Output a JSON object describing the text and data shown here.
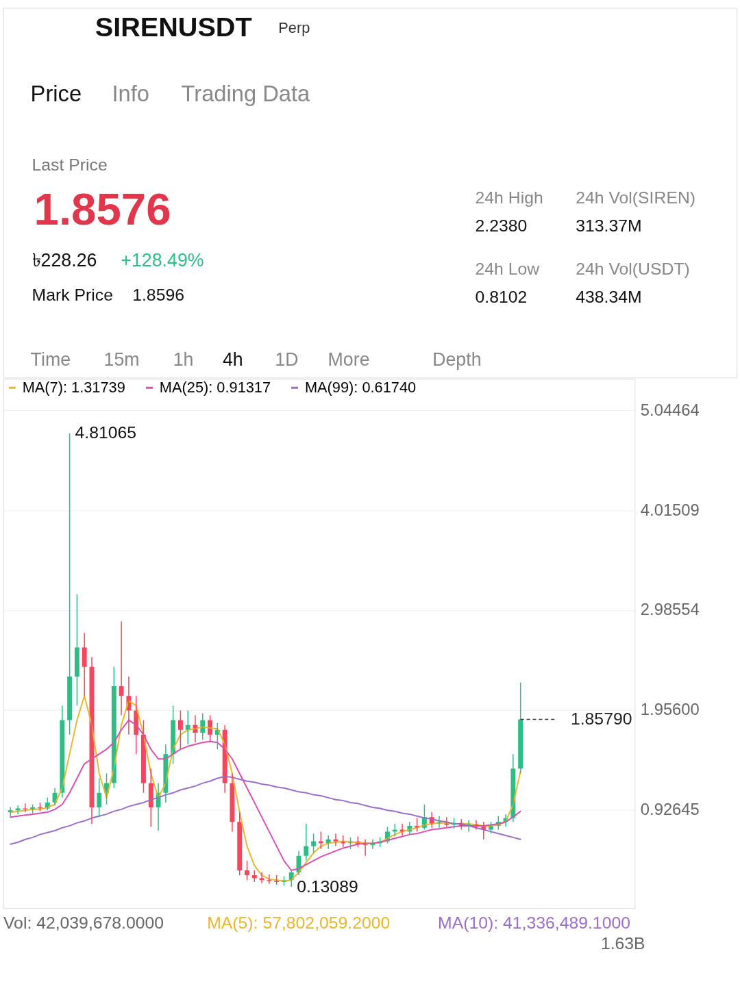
{
  "chart_data": [
    {
      "type": "other",
      "title": "SIRENUSDT",
      "annotations": [
        "Perp",
        "Price",
        "Info",
        "Trading Data",
        "Last Price",
        "1.8576",
        "৳228.26",
        "+128.49%",
        "Mark Price",
        "1.8596",
        "24h High",
        "2.2380",
        "24h Vol(SIREN)",
        "313.37M",
        "24h Low",
        "0.8102",
        "24h Vol(USDT)",
        "438.34M",
        "Time",
        "15m",
        "1h",
        "4h",
        "1D",
        "More",
        "Depth"
      ]
    },
    {
      "type": "candlestick",
      "categories": [
        null,
        null,
        null,
        null,
        null,
        null,
        null,
        null,
        null,
        null,
        null,
        null,
        null,
        null,
        null,
        null,
        null,
        null,
        null,
        null,
        null,
        null,
        null,
        null,
        null,
        null,
        null,
        null,
        null,
        null,
        null,
        null,
        null,
        null,
        null,
        null,
        null,
        null,
        null,
        null,
        null,
        null,
        null,
        null,
        null,
        null,
        null,
        null,
        null,
        null,
        null,
        null,
        null,
        null,
        null,
        null,
        null,
        null,
        null,
        null,
        null,
        null,
        null,
        null,
        null,
        null,
        null,
        null,
        null,
        null
      ],
      "ohlc": [
        [
          0.9,
          0.95,
          0.85,
          0.92
        ],
        [
          0.92,
          0.97,
          0.88,
          0.94
        ],
        [
          0.94,
          0.99,
          0.9,
          0.93
        ],
        [
          0.93,
          0.98,
          0.89,
          0.95
        ],
        [
          0.95,
          1.0,
          0.91,
          0.94
        ],
        [
          0.94,
          1.05,
          0.92,
          1.0
        ],
        [
          1.0,
          1.15,
          0.97,
          1.1
        ],
        [
          1.1,
          2.0,
          1.05,
          1.85
        ],
        [
          1.85,
          4.81065,
          1.7,
          2.3
        ],
        [
          2.3,
          3.15,
          2.0,
          2.6
        ],
        [
          2.6,
          2.75,
          2.1,
          2.4
        ],
        [
          2.4,
          2.5,
          0.78,
          0.95
        ],
        [
          0.95,
          1.25,
          0.85,
          1.1
        ],
        [
          1.1,
          1.3,
          0.98,
          1.2
        ],
        [
          1.2,
          2.4,
          1.15,
          2.2
        ],
        [
          2.2,
          2.87,
          1.9,
          2.1
        ],
        [
          2.1,
          2.3,
          1.7,
          1.95
        ],
        [
          1.95,
          2.1,
          1.5,
          1.7
        ],
        [
          1.7,
          1.85,
          1.1,
          1.2
        ],
        [
          1.2,
          1.35,
          0.75,
          0.95
        ],
        [
          0.95,
          1.2,
          0.71,
          1.1
        ],
        [
          1.1,
          1.6,
          1.0,
          1.5
        ],
        [
          1.5,
          2.0,
          1.4,
          1.85
        ],
        [
          1.85,
          1.95,
          1.55,
          1.75
        ],
        [
          1.75,
          1.95,
          1.6,
          1.8
        ],
        [
          1.8,
          1.9,
          1.62,
          1.72
        ],
        [
          1.72,
          1.92,
          1.65,
          1.85
        ],
        [
          1.85,
          1.9,
          1.62,
          1.7
        ],
        [
          1.7,
          1.82,
          1.55,
          1.75
        ],
        [
          1.75,
          1.8,
          1.1,
          1.2
        ],
        [
          1.2,
          1.3,
          0.7,
          0.8
        ],
        [
          0.8,
          0.9,
          0.25,
          0.3
        ],
        [
          0.3,
          0.4,
          0.2,
          0.25
        ],
        [
          0.25,
          0.3,
          0.18,
          0.22
        ],
        [
          0.22,
          0.28,
          0.17,
          0.2
        ],
        [
          0.2,
          0.26,
          0.16,
          0.19
        ],
        [
          0.19,
          0.25,
          0.15,
          0.18
        ],
        [
          0.18,
          0.24,
          0.14,
          0.2
        ],
        [
          0.2,
          0.3,
          0.13089,
          0.28
        ],
        [
          0.28,
          0.5,
          0.25,
          0.45
        ],
        [
          0.45,
          0.78,
          0.4,
          0.55
        ],
        [
          0.55,
          0.68,
          0.48,
          0.6
        ],
        [
          0.6,
          0.7,
          0.52,
          0.58
        ],
        [
          0.58,
          0.66,
          0.52,
          0.62
        ],
        [
          0.62,
          0.68,
          0.55,
          0.6
        ],
        [
          0.6,
          0.66,
          0.54,
          0.58
        ],
        [
          0.58,
          0.64,
          0.52,
          0.6
        ],
        [
          0.6,
          0.65,
          0.54,
          0.57
        ],
        [
          0.57,
          0.62,
          0.45,
          0.56
        ],
        [
          0.56,
          0.62,
          0.52,
          0.58
        ],
        [
          0.58,
          0.64,
          0.54,
          0.6
        ],
        [
          0.6,
          0.75,
          0.58,
          0.7
        ],
        [
          0.7,
          0.78,
          0.65,
          0.72
        ],
        [
          0.72,
          0.78,
          0.66,
          0.7
        ],
        [
          0.7,
          0.8,
          0.67,
          0.76
        ],
        [
          0.76,
          0.84,
          0.7,
          0.74
        ],
        [
          0.74,
          0.98,
          0.72,
          0.85
        ],
        [
          0.85,
          0.9,
          0.74,
          0.78
        ],
        [
          0.78,
          0.86,
          0.74,
          0.8
        ],
        [
          0.8,
          0.85,
          0.75,
          0.77
        ],
        [
          0.77,
          0.84,
          0.73,
          0.79
        ],
        [
          0.79,
          0.83,
          0.72,
          0.76
        ],
        [
          0.76,
          0.82,
          0.7,
          0.78
        ],
        [
          0.78,
          0.82,
          0.72,
          0.75
        ],
        [
          0.75,
          0.8,
          0.62,
          0.72
        ],
        [
          0.72,
          0.8,
          0.68,
          0.76
        ],
        [
          0.76,
          0.86,
          0.72,
          0.8
        ],
        [
          0.8,
          0.88,
          0.75,
          0.84
        ],
        [
          0.84,
          1.5,
          0.8,
          1.35
        ],
        [
          1.35,
          2.238,
          1.3,
          1.8579
        ]
      ],
      "series": [
        {
          "name": "MA(7): 1.31739",
          "type": "line",
          "color": "#e8b730",
          "values": [
            0.9,
            0.91,
            0.92,
            0.93,
            0.93,
            0.95,
            0.98,
            1.15,
            1.5,
            1.85,
            2.1,
            1.8,
            1.3,
            1.05,
            1.35,
            1.8,
            2.05,
            2.0,
            1.7,
            1.3,
            1.05,
            1.2,
            1.55,
            1.7,
            1.75,
            1.76,
            1.78,
            1.77,
            1.76,
            1.6,
            1.3,
            0.9,
            0.55,
            0.35,
            0.25,
            0.21,
            0.2,
            0.19,
            0.2,
            0.28,
            0.38,
            0.48,
            0.55,
            0.58,
            0.59,
            0.6,
            0.59,
            0.59,
            0.58,
            0.58,
            0.59,
            0.63,
            0.67,
            0.7,
            0.72,
            0.74,
            0.77,
            0.78,
            0.79,
            0.79,
            0.78,
            0.78,
            0.78,
            0.77,
            0.76,
            0.76,
            0.77,
            0.8,
            0.98,
            1.32
          ]
        },
        {
          "name": "MA(25): 0.91317",
          "type": "line",
          "color": "#d84fb4",
          "values": [
            0.85,
            0.86,
            0.87,
            0.88,
            0.89,
            0.9,
            0.93,
            0.98,
            1.1,
            1.25,
            1.4,
            1.45,
            1.5,
            1.55,
            1.62,
            1.75,
            1.85,
            1.8,
            1.7,
            1.55,
            1.45,
            1.45,
            1.5,
            1.55,
            1.58,
            1.6,
            1.62,
            1.63,
            1.62,
            1.55,
            1.45,
            1.3,
            1.15,
            1.0,
            0.85,
            0.7,
            0.55,
            0.4,
            0.3,
            0.32,
            0.36,
            0.4,
            0.44,
            0.47,
            0.5,
            0.53,
            0.55,
            0.57,
            0.58,
            0.58,
            0.59,
            0.61,
            0.63,
            0.65,
            0.67,
            0.68,
            0.7,
            0.72,
            0.73,
            0.74,
            0.75,
            0.76,
            0.76,
            0.76,
            0.76,
            0.77,
            0.78,
            0.8,
            0.85,
            0.91
          ]
        },
        {
          "name": "MA(99): 0.61740",
          "type": "line",
          "color": "#9b6fc8",
          "values": [
            0.57,
            0.59,
            0.62,
            0.64,
            0.67,
            0.69,
            0.71,
            0.74,
            0.76,
            0.79,
            0.81,
            0.84,
            0.86,
            0.88,
            0.91,
            0.93,
            0.96,
            0.98,
            1.0,
            1.03,
            1.05,
            1.08,
            1.1,
            1.13,
            1.15,
            1.17,
            1.2,
            1.22,
            1.25,
            1.27,
            1.26,
            1.24,
            1.22,
            1.21,
            1.19,
            1.18,
            1.16,
            1.15,
            1.13,
            1.11,
            1.1,
            1.08,
            1.07,
            1.05,
            1.03,
            1.02,
            1.0,
            0.99,
            0.97,
            0.95,
            0.94,
            0.92,
            0.91,
            0.89,
            0.88,
            0.86,
            0.84,
            0.83,
            0.81,
            0.8,
            0.78,
            0.78,
            0.76,
            0.74,
            0.72,
            0.7,
            0.68,
            0.66,
            0.64,
            0.62
          ]
        }
      ],
      "ylim": [
        -0.09,
        5.37
      ],
      "yticks": [
        0.92645,
        {
          "value": 1.956,
          "label": "1.95600"
        },
        2.98554,
        4.01509,
        5.04464
      ],
      "grid": "y",
      "legend": "top left",
      "tick_labels": "y",
      "ref_lines": [
        {
          "axis": "y",
          "value": 1.8579,
          "label": "1.85790",
          "line_style": "dashed"
        }
      ],
      "annotations": [
        "4.81065",
        "0.13089",
        "Vol: 42,039,678.0000",
        "MA(5): 57,802,059.2000",
        "MA(10): 41,336,489.1000",
        "1.63B"
      ]
    }
  ]
}
